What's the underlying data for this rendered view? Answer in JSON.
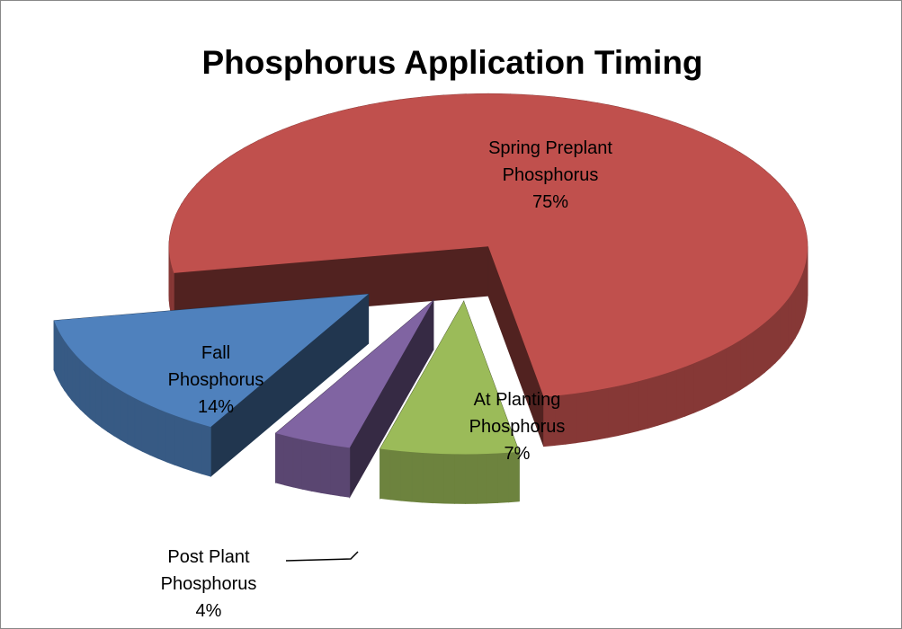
{
  "chart_data": {
    "type": "pie",
    "title": "Phosphorus Application Timing",
    "categories": [
      "Spring Preplant Phosphorus",
      "At Planting Phosphorus",
      "Post Plant Phosphorus",
      "Fall Phosphorus"
    ],
    "values": [
      75,
      7,
      4,
      14
    ],
    "value_labels": [
      "75%",
      "7%",
      "4%",
      "14%"
    ],
    "colors": [
      "#c0504d",
      "#9bbb59",
      "#8064a2",
      "#4f81bd"
    ]
  }
}
